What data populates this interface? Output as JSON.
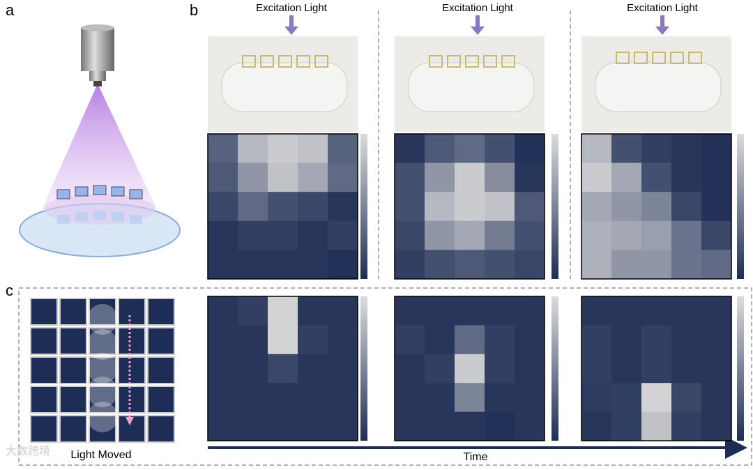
{
  "labels": {
    "a": "a",
    "b": "b",
    "c": "c"
  },
  "excitation": [
    "Excitation Light",
    "Excitation Light",
    "Excitation Light"
  ],
  "panel_b": {
    "heatmaps": [
      [
        [
          0.3,
          0.8,
          0.9,
          0.85,
          0.3
        ],
        [
          0.25,
          0.6,
          0.85,
          0.7,
          0.35
        ],
        [
          0.15,
          0.35,
          0.2,
          0.15,
          0.05
        ],
        [
          0.05,
          0.1,
          0.1,
          0.05,
          0.1
        ],
        [
          0.05,
          0.05,
          0.05,
          0.05,
          0.02
        ]
      ],
      [
        [
          0.05,
          0.25,
          0.35,
          0.2,
          0.02
        ],
        [
          0.2,
          0.6,
          0.9,
          0.55,
          0.05
        ],
        [
          0.2,
          0.8,
          0.9,
          0.85,
          0.25
        ],
        [
          0.15,
          0.6,
          0.7,
          0.45,
          0.2
        ],
        [
          0.1,
          0.2,
          0.25,
          0.2,
          0.15
        ]
      ],
      [
        [
          0.8,
          0.2,
          0.1,
          0.05,
          0.03
        ],
        [
          0.9,
          0.7,
          0.2,
          0.05,
          0.03
        ],
        [
          0.7,
          0.6,
          0.5,
          0.15,
          0.03
        ],
        [
          0.75,
          0.7,
          0.65,
          0.4,
          0.15
        ],
        [
          0.75,
          0.6,
          0.6,
          0.4,
          0.35
        ]
      ]
    ]
  },
  "panel_c": {
    "caption": "Light Moved",
    "time": "Time",
    "heatmaps": [
      [
        [
          0.05,
          0.1,
          0.95,
          0.05,
          0.05
        ],
        [
          0.05,
          0.05,
          0.95,
          0.1,
          0.05
        ],
        [
          0.05,
          0.05,
          0.15,
          0.05,
          0.05
        ],
        [
          0.05,
          0.05,
          0.05,
          0.05,
          0.05
        ],
        [
          0.05,
          0.05,
          0.05,
          0.05,
          0.05
        ]
      ],
      [
        [
          0.05,
          0.05,
          0.05,
          0.05,
          0.05
        ],
        [
          0.1,
          0.05,
          0.35,
          0.1,
          0.05
        ],
        [
          0.05,
          0.1,
          0.9,
          0.1,
          0.05
        ],
        [
          0.05,
          0.05,
          0.5,
          0.05,
          0.05
        ],
        [
          0.05,
          0.05,
          0.05,
          0.02,
          0.05
        ]
      ],
      [
        [
          0.05,
          0.05,
          0.05,
          0.05,
          0.05
        ],
        [
          0.1,
          0.05,
          0.1,
          0.05,
          0.05
        ],
        [
          0.1,
          0.05,
          0.1,
          0.05,
          0.05
        ],
        [
          0.08,
          0.1,
          0.95,
          0.15,
          0.05
        ],
        [
          0.05,
          0.1,
          0.85,
          0.1,
          0.05
        ]
      ]
    ]
  },
  "watermark": "大数跨境"
}
